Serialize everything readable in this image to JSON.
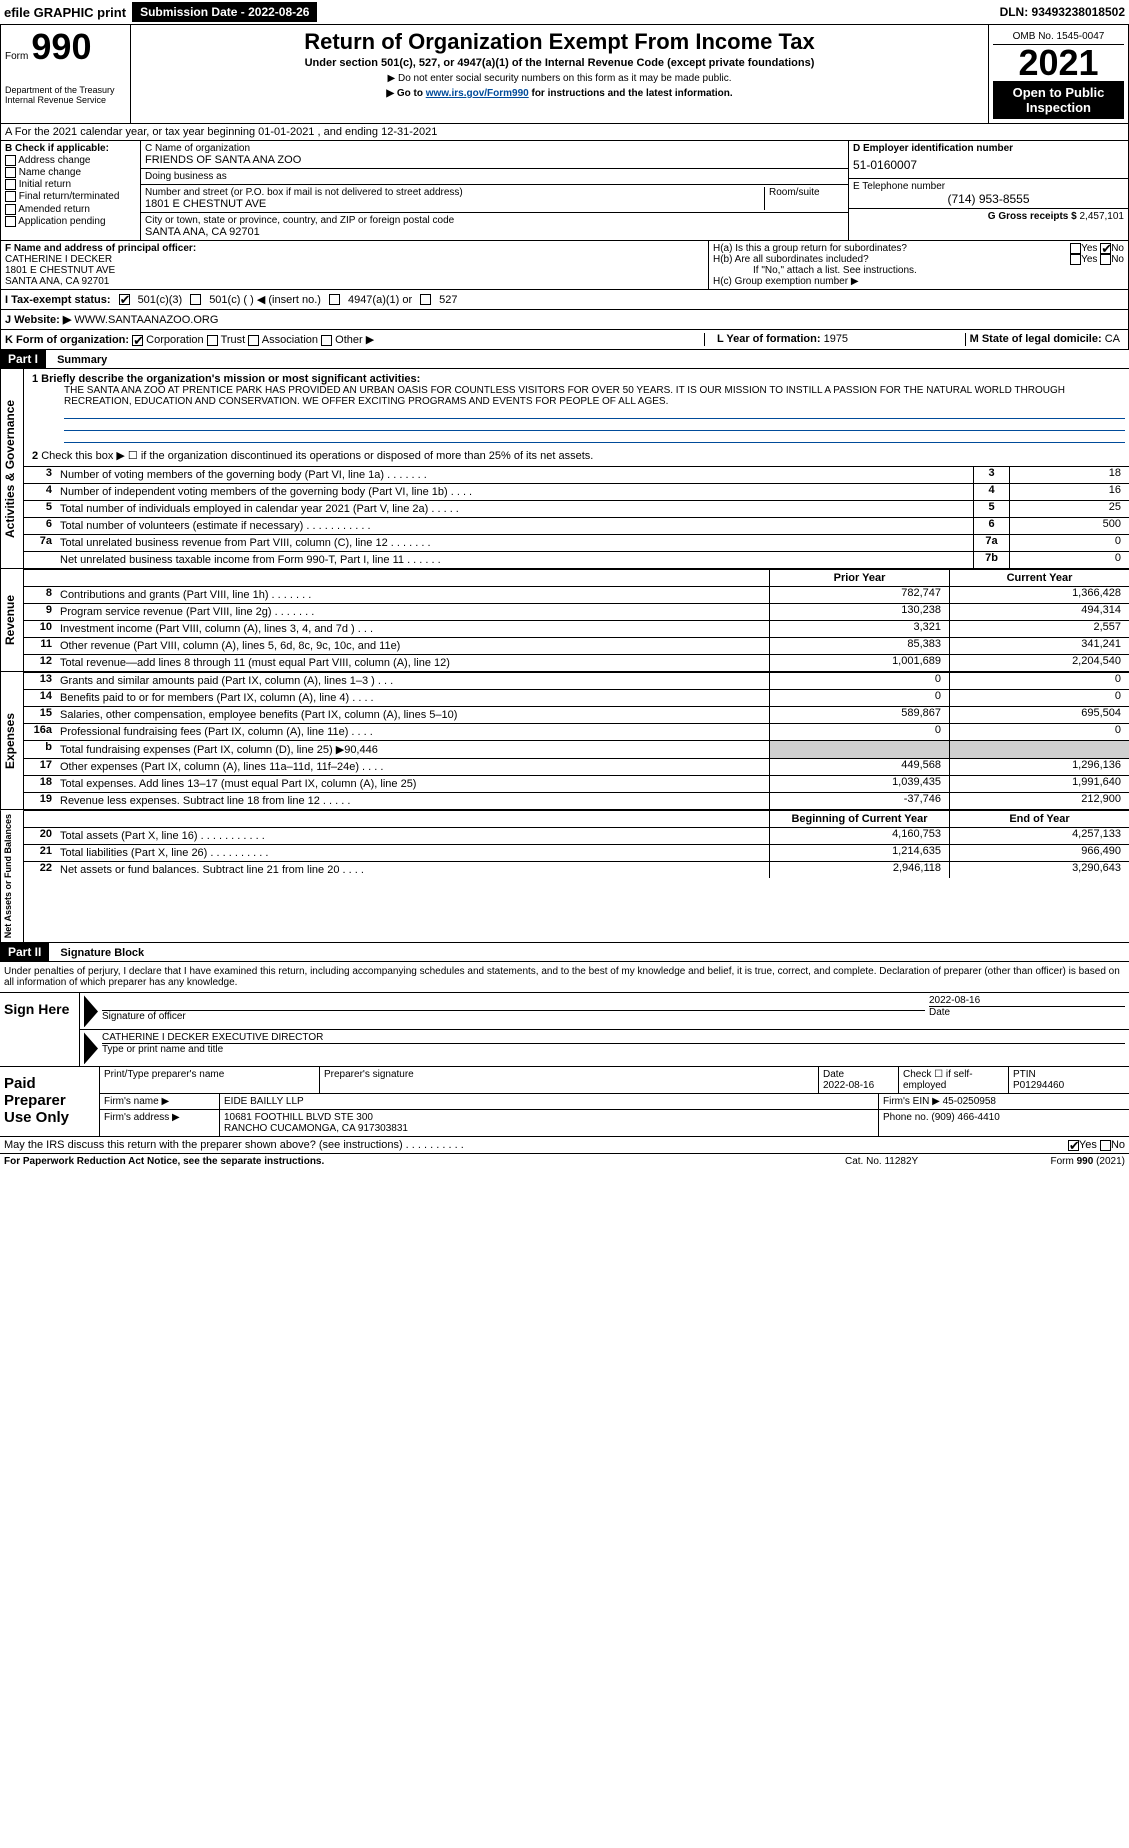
{
  "top": {
    "efile": "efile GRAPHIC print",
    "submit_btn": "Submission Date - 2022-08-26",
    "dln": "DLN: 93493238018502"
  },
  "header": {
    "form_label": "Form",
    "form_num": "990",
    "title": "Return of Organization Exempt From Income Tax",
    "sub": "Under section 501(c), 527, or 4947(a)(1) of the Internal Revenue Code (except private foundations)",
    "ssn_line": "▶ Do not enter social security numbers on this form as it may be made public.",
    "goto_pre": "▶ Go to ",
    "goto_link": "www.irs.gov/Form990",
    "goto_post": " for instructions and the latest information.",
    "omb": "OMB No. 1545-0047",
    "year": "2021",
    "pub": "Open to Public Inspection",
    "dept": "Department of the Treasury\nInternal Revenue Service"
  },
  "section_a": "A For the 2021 calendar year, or tax year beginning 01-01-2021   , and ending 12-31-2021",
  "box_b": {
    "hdr": "B Check if applicable:",
    "items": [
      "Address change",
      "Name change",
      "Initial return",
      "Final return/terminated",
      "Amended return",
      "Application pending"
    ]
  },
  "box_c": {
    "name_lbl": "C Name of organization",
    "name": "FRIENDS OF SANTA ANA ZOO",
    "dba_lbl": "Doing business as",
    "dba": "",
    "street_lbl": "Number and street (or P.O. box if mail is not delivered to street address)",
    "room_lbl": "Room/suite",
    "street": "1801 E CHESTNUT AVE",
    "city_lbl": "City or town, state or province, country, and ZIP or foreign postal code",
    "city": "SANTA ANA, CA  92701"
  },
  "box_d": {
    "ein_lbl": "D Employer identification number",
    "ein": "51-0160007",
    "tel_lbl": "E Telephone number",
    "tel": "(714) 953-8555",
    "gross_lbl": "G Gross receipts $",
    "gross": "2,457,101"
  },
  "box_f": {
    "lbl": "F Name and address of principal officer:",
    "name": "CATHERINE I DECKER",
    "street": "1801 E CHESTNUT AVE",
    "city": "SANTA ANA, CA  92701"
  },
  "box_h": {
    "a_lbl": "H(a)  Is this a group return for subordinates?",
    "b_lbl": "H(b)  Are all subordinates included?",
    "if_no": "If \"No,\" attach a list. See instructions.",
    "c_lbl": "H(c)  Group exemption number ▶",
    "yes": "Yes",
    "no": "No"
  },
  "status": {
    "lbl": "I  Tax-exempt status:",
    "opts": [
      "501(c)(3)",
      "501(c) (  ) ◀ (insert no.)",
      "4947(a)(1) or",
      "527"
    ]
  },
  "website": {
    "lbl": "J  Website: ▶",
    "val": "WWW.SANTAANAZOO.ORG"
  },
  "k": {
    "lbl": "K Form of organization:",
    "opts": [
      "Corporation",
      "Trust",
      "Association",
      "Other ▶"
    ],
    "l_lbl": "L Year of formation:",
    "l_val": "1975",
    "m_lbl": "M State of legal domicile:",
    "m_val": "CA"
  },
  "part1": {
    "hdr": "Part I",
    "label": "Summary",
    "vlabel_ag": "Activities & Governance",
    "vlabel_rev": "Revenue",
    "vlabel_exp": "Expenses",
    "vlabel_na": "Net Assets or Fund Balances",
    "l1_lbl": "1 Briefly describe the organization's mission or most significant activities:",
    "l1_txt": "THE SANTA ANA ZOO AT PRENTICE PARK HAS PROVIDED AN URBAN OASIS FOR COUNTLESS VISITORS FOR OVER 50 YEARS. IT IS OUR MISSION TO INSTILL A PASSION FOR THE NATURAL WORLD THROUGH RECREATION, EDUCATION AND CONSERVATION. WE OFFER EXCITING PROGRAMS AND EVENTS FOR PEOPLE OF ALL AGES.",
    "l2": "Check this box ▶ ☐  if the organization discontinued its operations or disposed of more than 25% of its net assets.",
    "rows_ag": [
      {
        "n": "3",
        "d": "Number of voting members of the governing body (Part VI, line 1a)   .    .    .    .    .    .    .",
        "bn": "3",
        "v": "18"
      },
      {
        "n": "4",
        "d": "Number of independent voting members of the governing body (Part VI, line 1b)    .    .    .    .",
        "bn": "4",
        "v": "16"
      },
      {
        "n": "5",
        "d": "Total number of individuals employed in calendar year 2021 (Part V, line 2a)   .    .    .    .    .",
        "bn": "5",
        "v": "25"
      },
      {
        "n": "6",
        "d": "Total number of volunteers (estimate if necessary)    .    .    .    .    .    .    .    .    .    .    .",
        "bn": "6",
        "v": "500"
      },
      {
        "n": "7a",
        "d": "Total unrelated business revenue from Part VIII, column (C), line 12   .    .    .    .    .    .    .",
        "bn": "7a",
        "v": "0"
      },
      {
        "n": "",
        "d": "Net unrelated business taxable income from Form 990-T, Part I, line 11   .    .    .    .    .    .",
        "bn": "7b",
        "v": "0"
      }
    ],
    "col_prior": "Prior Year",
    "col_curr": "Current Year",
    "rows_rev": [
      {
        "n": "8",
        "d": "Contributions and grants (Part VIII, line 1h)   .    .    .    .    .    .    .",
        "p": "782,747",
        "c": "1,366,428"
      },
      {
        "n": "9",
        "d": "Program service revenue (Part VIII, line 2g)   .    .    .    .    .    .    .",
        "p": "130,238",
        "c": "494,314"
      },
      {
        "n": "10",
        "d": "Investment income (Part VIII, column (A), lines 3, 4, and 7d )   .    .    .",
        "p": "3,321",
        "c": "2,557"
      },
      {
        "n": "11",
        "d": "Other revenue (Part VIII, column (A), lines 5, 6d, 8c, 9c, 10c, and 11e)",
        "p": "85,383",
        "c": "341,241"
      },
      {
        "n": "12",
        "d": "Total revenue—add lines 8 through 11 (must equal Part VIII, column (A), line 12)",
        "p": "1,001,689",
        "c": "2,204,540"
      }
    ],
    "rows_exp": [
      {
        "n": "13",
        "d": "Grants and similar amounts paid (Part IX, column (A), lines 1–3 )   .    .    .",
        "p": "0",
        "c": "0"
      },
      {
        "n": "14",
        "d": "Benefits paid to or for members (Part IX, column (A), line 4)   .    .    .    .",
        "p": "0",
        "c": "0"
      },
      {
        "n": "15",
        "d": "Salaries, other compensation, employee benefits (Part IX, column (A), lines 5–10)",
        "p": "589,867",
        "c": "695,504"
      },
      {
        "n": "16a",
        "d": "Professional fundraising fees (Part IX, column (A), line 11e)   .    .    .    .",
        "p": "0",
        "c": "0"
      },
      {
        "n": "b",
        "d": "Total fundraising expenses (Part IX, column (D), line 25) ▶90,446",
        "p": "",
        "c": "",
        "shaded": true
      },
      {
        "n": "17",
        "d": "Other expenses (Part IX, column (A), lines 11a–11d, 11f–24e)   .    .    .    .",
        "p": "449,568",
        "c": "1,296,136"
      },
      {
        "n": "18",
        "d": "Total expenses. Add lines 13–17 (must equal Part IX, column (A), line 25)",
        "p": "1,039,435",
        "c": "1,991,640"
      },
      {
        "n": "19",
        "d": "Revenue less expenses. Subtract line 18 from line 12   .    .    .    .    .",
        "p": "-37,746",
        "c": "212,900"
      }
    ],
    "col_beg": "Beginning of Current Year",
    "col_end": "End of Year",
    "rows_na": [
      {
        "n": "20",
        "d": "Total assets (Part X, line 16)   .    .    .    .    .    .    .    .    .    .    .",
        "p": "4,160,753",
        "c": "4,257,133"
      },
      {
        "n": "21",
        "d": "Total liabilities (Part X, line 26)   .    .    .    .    .    .    .    .    .    .",
        "p": "1,214,635",
        "c": "966,490"
      },
      {
        "n": "22",
        "d": "Net assets or fund balances. Subtract line 21 from line 20   .    .    .    .",
        "p": "2,946,118",
        "c": "3,290,643"
      }
    ]
  },
  "part2": {
    "hdr": "Part II",
    "label": "Signature Block",
    "decl": "Under penalties of perjury, I declare that I have examined this return, including accompanying schedules and statements, and to the best of my knowledge and belief, it is true, correct, and complete. Declaration of preparer (other than officer) is based on all information of which preparer has any knowledge.",
    "sign_here": "Sign Here",
    "sig_officer": "Signature of officer",
    "date_lbl": "Date",
    "date": "2022-08-16",
    "officer_name": "CATHERINE I DECKER  EXECUTIVE DIRECTOR",
    "type_lbl": "Type or print name and title",
    "paid_prep": "Paid Preparer Use Only",
    "print_lbl": "Print/Type preparer's name",
    "prep_sig_lbl": "Preparer's signature",
    "prep_date": "2022-08-16",
    "check_if": "Check ☐ if self-employed",
    "ptin_lbl": "PTIN",
    "ptin": "P01294460",
    "firm_lbl": "Firm's name    ▶",
    "firm": "EIDE BAILLY LLP",
    "firm_ein_lbl": "Firm's EIN ▶",
    "firm_ein": "45-0250958",
    "firm_addr_lbl": "Firm's address ▶",
    "firm_addr1": "10681 FOOTHILL BLVD STE 300",
    "firm_addr2": "RANCHO CUCAMONGA, CA  917303831",
    "firm_ph_lbl": "Phone no.",
    "firm_ph": "(909) 466-4410",
    "discuss": "May the IRS discuss this return with the preparer shown above? (see instructions)   .    .    .    .    .    .    .    .    .    .",
    "yes": "Yes",
    "no": "No",
    "footer_l": "For Paperwork Reduction Act Notice, see the separate instructions.",
    "footer_c": "Cat. No. 11282Y",
    "footer_r": "Form 990 (2021)"
  }
}
